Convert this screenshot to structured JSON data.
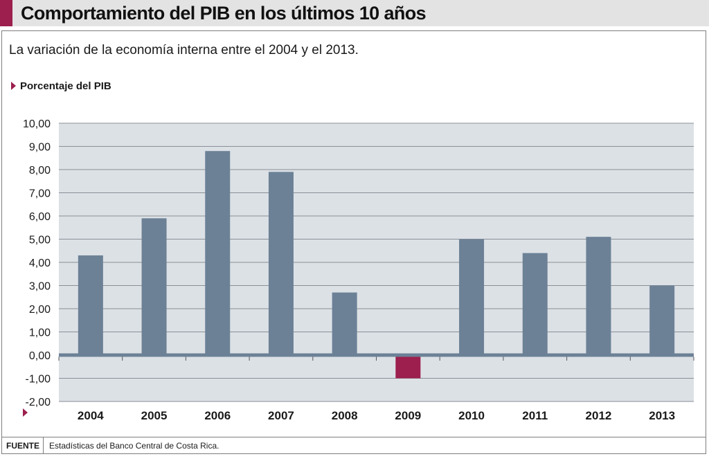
{
  "header": {
    "title": "Comportamiento del PIB en los últimos 10 años",
    "subtitle": "La variación de la economía interna entre el 2004 y el 2013."
  },
  "colors": {
    "accent": "#9c1f4d",
    "bar": "#6c8196",
    "negative_bar": "#9c1f4d",
    "plot_background": "#dce1e6",
    "gridline": "#8a8f96",
    "zero_line": "#6c8196"
  },
  "chart_data": {
    "type": "bar",
    "ylabel": "Porcentaje del PIB",
    "xlabel": "",
    "categories": [
      "2004",
      "2005",
      "2006",
      "2007",
      "2008",
      "2009",
      "2010",
      "2011",
      "2012",
      "2013"
    ],
    "values": [
      4.3,
      5.9,
      8.8,
      7.9,
      2.7,
      -1.0,
      5.0,
      4.4,
      5.1,
      3.0
    ],
    "ylim": [
      -2,
      10
    ],
    "yticks": [
      10,
      9,
      8,
      7,
      6,
      5,
      4,
      3,
      2,
      1,
      0,
      -1,
      -2
    ],
    "ytick_labels": [
      "10,00",
      "9,00",
      "8,00",
      "7,00",
      "6,00",
      "5,00",
      "4,00",
      "3,00",
      "2,00",
      "1,00",
      "0,00",
      "-1,00",
      "-2,00"
    ],
    "grid": true,
    "legend": "none"
  },
  "footer": {
    "source_label": "FUENTE",
    "source_text": "Estadísticas del Banco Central de Costa Rica."
  }
}
